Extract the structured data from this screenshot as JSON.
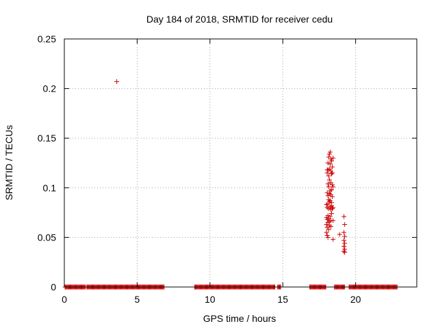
{
  "chart_data": {
    "type": "scatter",
    "title": "Day 184 of 2018, SRMTID for receiver cedu",
    "xlabel": "GPS time / hours",
    "ylabel": "SRMTID / TECUs",
    "xlim": [
      0,
      24.2
    ],
    "ylim": [
      0,
      0.25
    ],
    "xticks": [
      0,
      5,
      10,
      15,
      20
    ],
    "xtick_labels": [
      "0",
      "5",
      "10",
      "15",
      "20"
    ],
    "yticks": [
      0,
      0.05,
      0.1,
      0.15,
      0.2,
      0.25
    ],
    "ytick_labels": [
      "0",
      "0.05",
      "0.1",
      "0.15",
      "0.2",
      "0.25"
    ],
    "grid": true,
    "marker": "+",
    "marker_color": "#cc0000",
    "zero_segments": [
      [
        0.05,
        1.45
      ],
      [
        1.55,
        6.85
      ],
      [
        8.95,
        14.45
      ],
      [
        14.65,
        14.85
      ],
      [
        16.85,
        17.95
      ],
      [
        18.55,
        19.25
      ],
      [
        19.55,
        22.85
      ]
    ],
    "zero_step": 0.05,
    "series": [
      {
        "name": "SRMTID",
        "x": [
          3.6,
          18.05,
          18.1,
          18.15,
          18.2,
          18.25,
          18.3,
          18.35,
          18.4,
          18.45,
          18.05,
          18.1,
          18.15,
          18.2,
          18.25,
          18.3,
          18.35,
          18.4,
          18.1,
          18.15,
          18.2,
          18.25,
          18.3,
          18.35,
          18.4,
          18.45,
          18.05,
          18.1,
          18.15,
          18.2,
          18.25,
          18.3,
          18.35,
          18.4,
          18.0,
          18.05,
          18.1,
          18.15,
          18.2,
          18.25,
          18.3,
          18.35,
          18.4,
          18.45,
          18.0,
          18.05,
          18.1,
          18.15,
          18.2,
          18.25,
          18.3,
          18.35,
          18.0,
          18.05,
          18.1,
          18.15,
          18.2,
          18.3,
          18.45,
          18.0,
          18.05,
          18.1,
          18.45,
          18.9,
          19.2,
          19.25,
          19.2,
          19.25,
          19.2,
          19.25,
          19.2,
          19.25,
          19.2,
          19.25
        ],
        "y": [
          0.207,
          0.118,
          0.125,
          0.131,
          0.134,
          0.136,
          0.129,
          0.127,
          0.121,
          0.13,
          0.115,
          0.118,
          0.112,
          0.119,
          0.124,
          0.117,
          0.114,
          0.115,
          0.104,
          0.101,
          0.108,
          0.097,
          0.105,
          0.098,
          0.103,
          0.101,
          0.095,
          0.092,
          0.088,
          0.094,
          0.087,
          0.093,
          0.085,
          0.091,
          0.083,
          0.08,
          0.084,
          0.079,
          0.086,
          0.081,
          0.078,
          0.082,
          0.079,
          0.08,
          0.07,
          0.068,
          0.072,
          0.069,
          0.066,
          0.071,
          0.067,
          0.074,
          0.063,
          0.06,
          0.065,
          0.058,
          0.062,
          0.061,
          0.067,
          0.055,
          0.052,
          0.05,
          0.048,
          0.053,
          0.071,
          0.063,
          0.055,
          0.051,
          0.047,
          0.044,
          0.041,
          0.038,
          0.036,
          0.035
        ]
      }
    ]
  }
}
